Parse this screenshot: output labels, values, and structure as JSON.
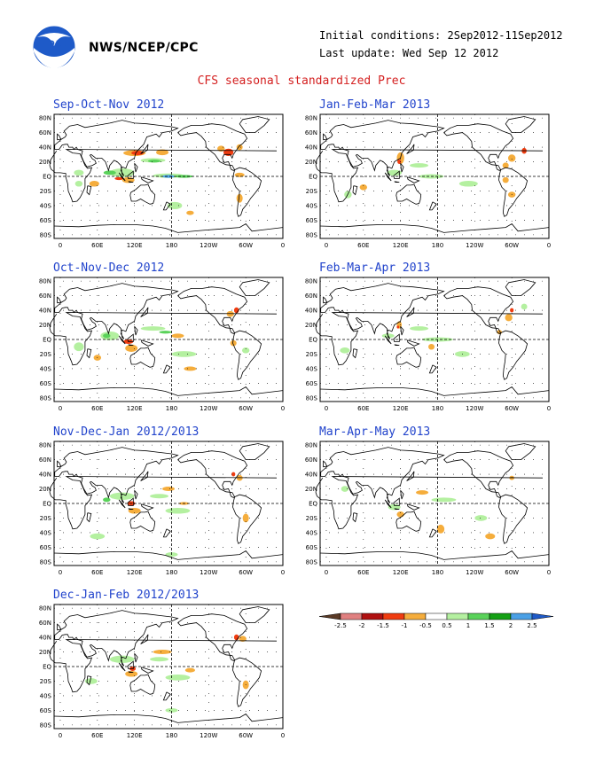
{
  "header": {
    "org": "NWS/NCEP/CPC",
    "initial_conditions": "Initial conditions: 2Sep2012-11Sep2012",
    "last_update": "Last update: Wed Sep 12 2012",
    "title": "CFS seasonal standardized Prec"
  },
  "axes": {
    "lat_ticks": [
      "80N",
      "60N",
      "40N",
      "20N",
      "EQ",
      "20S",
      "40S",
      "60S",
      "80S"
    ],
    "lon_ticks": [
      "0",
      "60E",
      "120E",
      "180",
      "120W",
      "60W",
      "0"
    ]
  },
  "panels": [
    {
      "title": "Sep-Oct-Nov 2012"
    },
    {
      "title": "Jan-Feb-Mar 2013"
    },
    {
      "title": "Oct-Nov-Dec 2012"
    },
    {
      "title": "Feb-Mar-Apr 2013"
    },
    {
      "title": "Nov-Dec-Jan 2012/2013"
    },
    {
      "title": "Mar-Apr-May 2013"
    },
    {
      "title": "Dec-Jan-Feb 2012/2013"
    }
  ],
  "colorbar": {
    "labels": [
      "-2.5",
      "-2",
      "-1.5",
      "-1",
      "-0.5",
      "0.5",
      "1",
      "1.5",
      "2",
      "2.5"
    ],
    "colors": [
      "#5a3a26",
      "#e08080",
      "#b01010",
      "#f03c10",
      "#f5ad3c",
      "#ffffff",
      "#b4f0a0",
      "#5ad25a",
      "#14a014",
      "#4aa0e6",
      "#1e5ac8"
    ]
  },
  "colors": {
    "dry_light": "#f5ad3c",
    "dry_mid": "#f03c10",
    "dry_strong": "#b01010",
    "wet_light": "#b4f0a0",
    "wet_mid": "#5ad25a",
    "wet_strong": "#14a014",
    "wet_blue": "#4aa0e6"
  }
}
